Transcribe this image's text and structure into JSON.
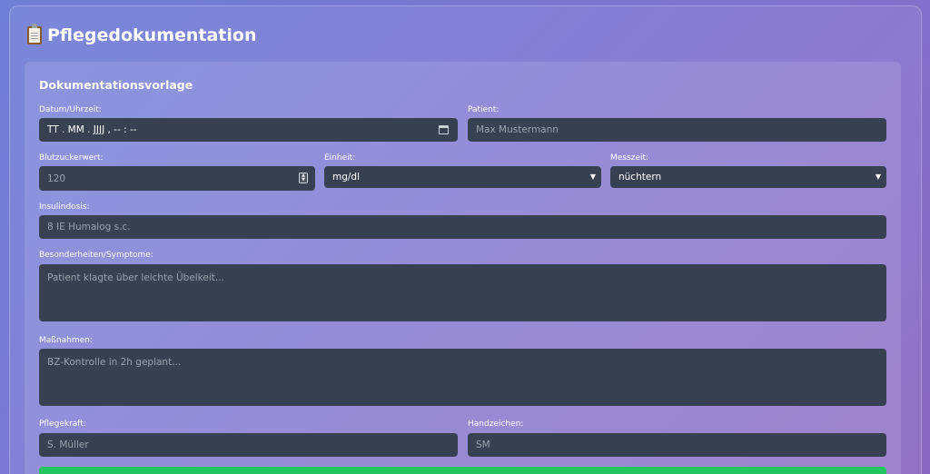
{
  "header": {
    "title": "Pflegedokumentation",
    "icon": "clipboard-icon"
  },
  "form": {
    "section_title": "Dokumentationsvorlage",
    "datetime": {
      "label": "Datum/Uhrzeit:",
      "value": "TT . MM . JJJJ ,  -- : --"
    },
    "patient": {
      "label": "Patient:",
      "placeholder": "Max Mustermann"
    },
    "glucose": {
      "label": "Blutzuckerwert:",
      "placeholder": "120"
    },
    "unit": {
      "label": "Einheit:",
      "value": "mg/dl"
    },
    "time": {
      "label": "Messzeit:",
      "value": "nüchtern"
    },
    "insulin": {
      "label": "Insulindosis:",
      "placeholder": "8 IE Humalog s.c."
    },
    "symptoms": {
      "label": "Besonderheiten/Symptome:",
      "placeholder": "Patient klagte über leichte Übelkeit..."
    },
    "measures": {
      "label": "Maßnahmen:",
      "placeholder": "BZ-Kontrolle in 2h geplant..."
    },
    "nurse": {
      "label": "Pflegekraft:",
      "placeholder": "S. Müller"
    },
    "initials": {
      "label": "Handzeichen:",
      "placeholder": "SM"
    }
  },
  "colors": {
    "field_bg": "#374151",
    "submit": "#22c55e"
  }
}
